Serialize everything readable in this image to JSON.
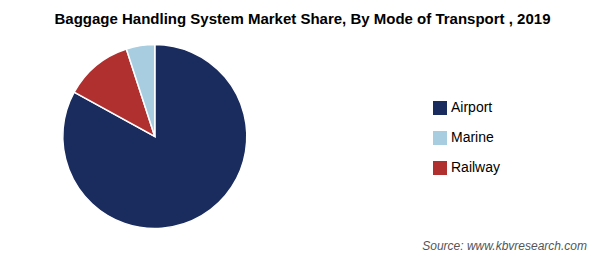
{
  "chart_data": {
    "type": "pie",
    "title": "Baggage Handling System Market Share, By Mode of Transport , 2019",
    "categories": [
      "Airport",
      "Railway",
      "Marine"
    ],
    "values": [
      83,
      12,
      5
    ],
    "colors": [
      "#1a2b5e",
      "#b03030",
      "#a8cce0"
    ],
    "legend": "right",
    "annotations": [
      "Source: www.kbvresearch.com"
    ]
  }
}
